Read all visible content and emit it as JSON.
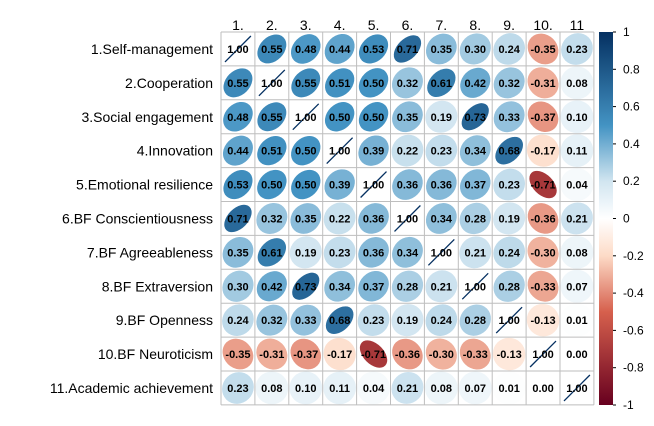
{
  "chart_data": {
    "type": "heatmap",
    "variables": [
      "1.Self-management",
      "2.Cooperation",
      "3.Social engagement",
      "4.Innovation",
      "5.Emotional resilience",
      "6.BF Conscientiousness",
      "7.BF Agreeableness",
      "8.BF Extraversion",
      "9.BF Openness",
      "10.BF Neuroticism",
      "11.Academic achievement"
    ],
    "column_labels": [
      "1.",
      "2.",
      "3.",
      "4.",
      "5.",
      "6.",
      "7.",
      "8.",
      "9.",
      "10.",
      "11"
    ],
    "matrix": [
      [
        1.0,
        0.55,
        0.48,
        0.44,
        0.53,
        0.71,
        0.35,
        0.3,
        0.24,
        -0.35,
        0.23
      ],
      [
        0.55,
        1.0,
        0.55,
        0.51,
        0.5,
        0.32,
        0.61,
        0.42,
        0.32,
        -0.31,
        0.08
      ],
      [
        0.48,
        0.55,
        1.0,
        0.5,
        0.5,
        0.35,
        0.19,
        0.73,
        0.33,
        -0.37,
        0.1
      ],
      [
        0.44,
        0.51,
        0.5,
        1.0,
        0.39,
        0.22,
        0.23,
        0.34,
        0.68,
        -0.17,
        0.11
      ],
      [
        0.53,
        0.5,
        0.5,
        0.39,
        1.0,
        0.36,
        0.36,
        0.37,
        0.23,
        -0.71,
        0.04
      ],
      [
        0.71,
        0.32,
        0.35,
        0.22,
        0.36,
        1.0,
        0.34,
        0.28,
        0.19,
        -0.36,
        0.21
      ],
      [
        0.35,
        0.61,
        0.19,
        0.23,
        0.36,
        0.34,
        1.0,
        0.21,
        0.24,
        -0.3,
        0.08
      ],
      [
        0.3,
        0.42,
        0.73,
        0.34,
        0.37,
        0.28,
        0.21,
        1.0,
        0.28,
        -0.33,
        0.07
      ],
      [
        0.24,
        0.32,
        0.33,
        0.68,
        0.23,
        0.19,
        0.24,
        0.28,
        1.0,
        -0.13,
        0.01
      ],
      [
        -0.35,
        -0.31,
        -0.37,
        -0.17,
        -0.71,
        -0.36,
        -0.3,
        -0.33,
        -0.13,
        1.0,
        0.0
      ],
      [
        0.23,
        0.08,
        0.1,
        0.11,
        0.04,
        0.21,
        0.08,
        0.07,
        0.01,
        0.0,
        1.0
      ]
    ],
    "scale": {
      "min": -1,
      "max": 1,
      "ticks": [
        1,
        0.8,
        0.6,
        0.4,
        0.2,
        0,
        -0.2,
        -0.4,
        -0.6,
        -0.8,
        -1
      ],
      "tick_labels": [
        "1",
        "0.8",
        "0.6",
        "0.4",
        "0.2",
        "0",
        "-0.2",
        "-0.4",
        "-0.6",
        "-0.8",
        "-1"
      ]
    },
    "colors": {
      "neg_strong": "#67001F",
      "neg_mid": "#D6604D",
      "neg_light": "#FDDBC7",
      "neutral": "#FFFFFF",
      "pos_light": "#D1E5F0",
      "pos_mid": "#4393C3",
      "pos_strong": "#053061",
      "grid": "#BEBEBE",
      "diagonal_line": "#053061"
    },
    "legend_placement": "right",
    "grid": true
  }
}
